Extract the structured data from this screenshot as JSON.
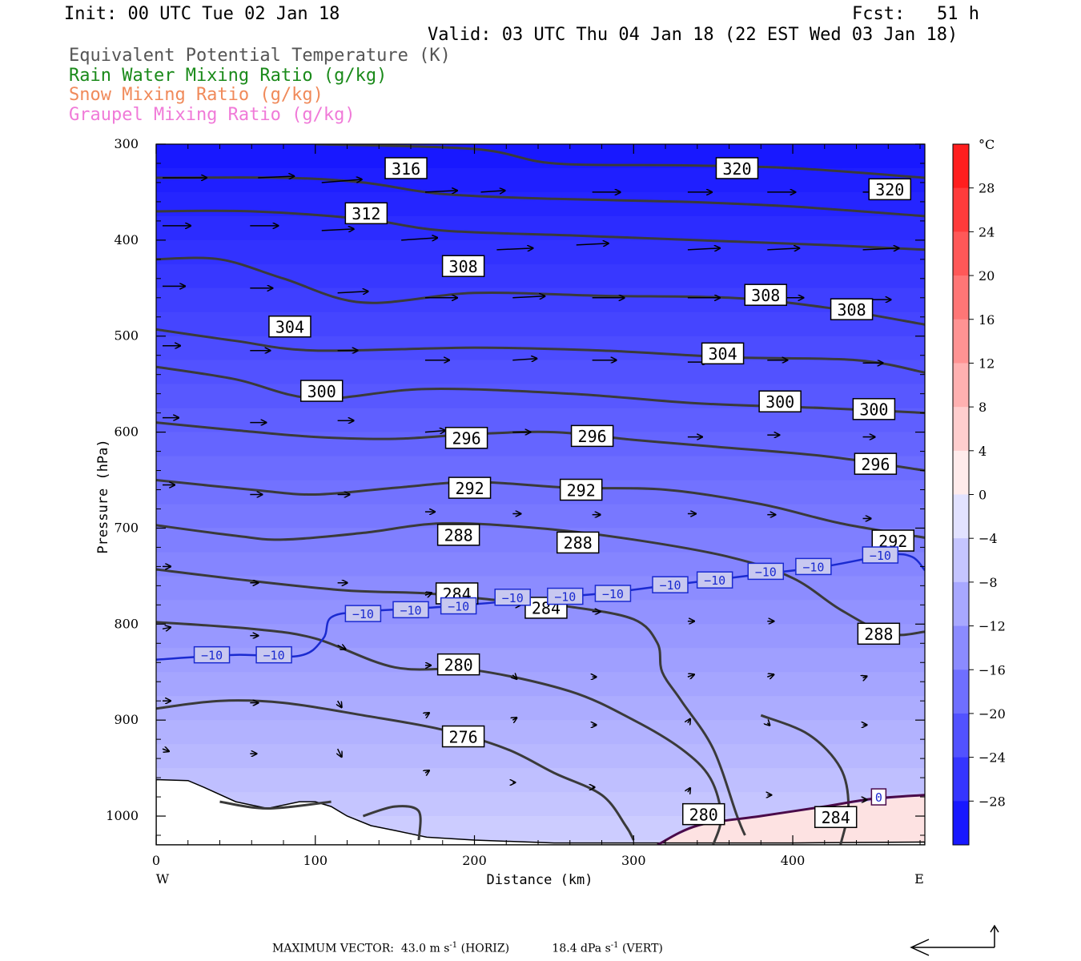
{
  "header": {
    "init": "Init: 00 UTC Tue 02 Jan 18",
    "fcst": "Fcst:   51 h",
    "valid": "Valid: 03 UTC Thu 04 Jan 18 (22 EST Wed 03 Jan 18)"
  },
  "legend": {
    "ept": "Equivalent Potential Temperature (K)",
    "rain": "Rain Water Mixing Ratio (g/kg)",
    "snow": "Snow Mixing Ratio (g/kg)",
    "graupel": "Graupel Mixing Ratio (g/kg)"
  },
  "colors": {
    "ept": "#555555",
    "rain": "#1a8a1a",
    "snow": "#f08a5a",
    "graupel": "#f07ad8",
    "isotherm": "#1a2ad0",
    "zero_isotherm": "#4a0a4a",
    "theta_e": "#3a3a3a"
  },
  "footer": {
    "prefix": "MAXIMUM VECTOR:  43.0 m s",
    "horiz_suffix": " (HORIZ)",
    "vert_prefix": "            18.4 dPa s",
    "vert_suffix": " (VERT)",
    "exp": "-1"
  },
  "chart_data": {
    "type": "cross-section",
    "xlabel": "Distance (km)",
    "ylabel": "Pressure (hPa)",
    "x_range": [
      0,
      483
    ],
    "y_range": [
      1030,
      300
    ],
    "y_scale": "linear",
    "x_ticks": [
      "0",
      "100",
      "200",
      "300",
      "400"
    ],
    "y_ticks": [
      "300",
      "400",
      "500",
      "600",
      "700",
      "800",
      "900",
      "1000"
    ],
    "west_label": "W",
    "east_label": "E",
    "colorbar": {
      "unit": "°C",
      "labels": [
        "28",
        "24",
        "20",
        "16",
        "12",
        "8",
        "4",
        "0",
        "−4",
        "−8",
        "−12",
        "−16",
        "−20",
        "−24",
        "−28"
      ],
      "min": -32,
      "max": 32,
      "step": 4
    },
    "theta_e_contours": [
      {
        "value": 320,
        "points": [
          [
            100,
            300
          ],
          [
            200,
            305
          ],
          [
            250,
            320
          ],
          [
            330,
            322
          ],
          [
            400,
            325
          ],
          [
            483,
            335
          ]
        ]
      },
      {
        "value": 316,
        "points": [
          [
            0,
            335
          ],
          [
            80,
            335
          ],
          [
            130,
            340
          ],
          [
            180,
            352
          ],
          [
            250,
            357
          ],
          [
            330,
            360
          ],
          [
            400,
            365
          ],
          [
            483,
            375
          ]
        ]
      },
      {
        "value": 312,
        "points": [
          [
            0,
            370
          ],
          [
            60,
            370
          ],
          [
            130,
            378
          ],
          [
            180,
            390
          ],
          [
            260,
            395
          ],
          [
            340,
            400
          ],
          [
            420,
            405
          ],
          [
            483,
            410
          ]
        ]
      },
      {
        "value": 308,
        "points": [
          [
            0,
            420
          ],
          [
            40,
            420
          ],
          [
            80,
            440
          ],
          [
            130,
            465
          ],
          [
            200,
            455
          ],
          [
            280,
            458
          ],
          [
            360,
            460
          ],
          [
            420,
            470
          ],
          [
            483,
            488
          ]
        ]
      },
      {
        "value": 304,
        "points": [
          [
            0,
            493
          ],
          [
            50,
            505
          ],
          [
            100,
            515
          ],
          [
            200,
            512
          ],
          [
            280,
            515
          ],
          [
            360,
            522
          ],
          [
            440,
            525
          ],
          [
            483,
            538
          ]
        ]
      },
      {
        "value": 300,
        "points": [
          [
            0,
            532
          ],
          [
            50,
            545
          ],
          [
            100,
            565
          ],
          [
            170,
            555
          ],
          [
            260,
            560
          ],
          [
            340,
            570
          ],
          [
            420,
            575
          ],
          [
            483,
            580
          ]
        ]
      },
      {
        "value": 296,
        "points": [
          [
            0,
            590
          ],
          [
            50,
            598
          ],
          [
            100,
            605
          ],
          [
            150,
            607
          ],
          [
            200,
            602
          ],
          [
            250,
            600
          ],
          [
            300,
            608
          ],
          [
            350,
            615
          ],
          [
            420,
            625
          ],
          [
            483,
            640
          ]
        ]
      },
      {
        "value": 292,
        "points": [
          [
            0,
            650
          ],
          [
            60,
            660
          ],
          [
            100,
            665
          ],
          [
            150,
            658
          ],
          [
            200,
            652
          ],
          [
            260,
            658
          ],
          [
            320,
            660
          ],
          [
            380,
            675
          ],
          [
            430,
            695
          ],
          [
            483,
            710
          ]
        ]
      },
      {
        "value": 288,
        "points": [
          [
            0,
            697
          ],
          [
            50,
            708
          ],
          [
            80,
            712
          ],
          [
            130,
            705
          ],
          [
            180,
            695
          ],
          [
            240,
            700
          ],
          [
            300,
            712
          ],
          [
            360,
            730
          ],
          [
            400,
            752
          ],
          [
            430,
            785
          ],
          [
            460,
            810
          ],
          [
            483,
            808
          ]
        ]
      },
      {
        "value": 284,
        "points": [
          [
            0,
            743
          ],
          [
            60,
            755
          ],
          [
            120,
            765
          ],
          [
            170,
            768
          ],
          [
            220,
            776
          ],
          [
            260,
            782
          ],
          [
            300,
            795
          ],
          [
            315,
            820
          ],
          [
            318,
            850
          ],
          [
            330,
            880
          ],
          [
            350,
            930
          ],
          [
            365,
            1000
          ],
          [
            370,
            1020
          ]
        ]
      },
      {
        "value": 280,
        "points": [
          [
            0,
            798
          ],
          [
            60,
            805
          ],
          [
            100,
            815
          ],
          [
            150,
            845
          ],
          [
            200,
            848
          ],
          [
            260,
            870
          ],
          [
            300,
            900
          ],
          [
            330,
            930
          ],
          [
            348,
            960
          ],
          [
            355,
            1000
          ],
          [
            350,
            1030
          ]
        ]
      },
      {
        "value": 280.1,
        "points": [
          [
            0,
            888
          ],
          [
            40,
            880
          ],
          [
            80,
            882
          ],
          [
            130,
            895
          ],
          [
            180,
            910
          ],
          [
            220,
            930
          ],
          [
            250,
            955
          ],
          [
            280,
            978
          ],
          [
            295,
            1010
          ],
          [
            300,
            1025
          ]
        ]
      },
      {
        "value": 284.1,
        "points": [
          [
            380,
            895
          ],
          [
            410,
            915
          ],
          [
            430,
            950
          ],
          [
            435,
            990
          ],
          [
            430,
            1030
          ]
        ]
      },
      {
        "value": 276,
        "points": [
          [
            130,
            1000
          ],
          [
            150,
            990
          ],
          [
            165,
            995
          ],
          [
            165,
            1025
          ]
        ]
      },
      {
        "value": 276.1,
        "points": [
          [
            110,
            985
          ],
          [
            70,
            992
          ],
          [
            40,
            985
          ]
        ]
      }
    ],
    "theta_e_labels": [
      {
        "value": "316",
        "x": 157,
        "p": 325
      },
      {
        "value": "320",
        "x": 365,
        "p": 325
      },
      {
        "value": "320",
        "x": 461,
        "p": 347
      },
      {
        "value": "312",
        "x": 132,
        "p": 372
      },
      {
        "value": "308",
        "x": 193,
        "p": 427
      },
      {
        "value": "308",
        "x": 383,
        "p": 457
      },
      {
        "value": "308",
        "x": 437,
        "p": 472
      },
      {
        "value": "304",
        "x": 84,
        "p": 490
      },
      {
        "value": "304",
        "x": 356,
        "p": 518
      },
      {
        "value": "300",
        "x": 104,
        "p": 557
      },
      {
        "value": "300",
        "x": 392,
        "p": 568
      },
      {
        "value": "300",
        "x": 451,
        "p": 576
      },
      {
        "value": "296",
        "x": 195,
        "p": 606
      },
      {
        "value": "296",
        "x": 274,
        "p": 604
      },
      {
        "value": "296",
        "x": 452,
        "p": 633
      },
      {
        "value": "292",
        "x": 197,
        "p": 658
      },
      {
        "value": "292",
        "x": 267,
        "p": 660
      },
      {
        "value": "292",
        "x": 463,
        "p": 713
      },
      {
        "value": "288",
        "x": 190,
        "p": 707
      },
      {
        "value": "288",
        "x": 265,
        "p": 715
      },
      {
        "value": "288",
        "x": 454,
        "p": 810
      },
      {
        "value": "284",
        "x": 189,
        "p": 768
      },
      {
        "value": "284",
        "x": 245,
        "p": 783
      },
      {
        "value": "284",
        "x": 427,
        "p": 1001
      },
      {
        "value": "280",
        "x": 190,
        "p": 842
      },
      {
        "value": "280",
        "x": 344,
        "p": 998
      },
      {
        "value": "276",
        "x": 193,
        "p": 917
      }
    ],
    "isotherm_minus10": {
      "value": "−10",
      "points": [
        [
          0,
          837
        ],
        [
          50,
          832
        ],
        [
          90,
          833
        ],
        [
          105,
          815
        ],
        [
          110,
          793
        ],
        [
          130,
          787
        ],
        [
          180,
          782
        ],
        [
          230,
          775
        ],
        [
          280,
          768
        ],
        [
          320,
          760
        ],
        [
          380,
          748
        ],
        [
          420,
          740
        ],
        [
          460,
          728
        ],
        [
          475,
          730
        ],
        [
          483,
          744
        ]
      ],
      "label_positions": [
        [
          35,
          832
        ],
        [
          74,
          832
        ],
        [
          130,
          789
        ],
        [
          160,
          785
        ],
        [
          190,
          781
        ],
        [
          224,
          772
        ],
        [
          257,
          771
        ],
        [
          287,
          768
        ],
        [
          323,
          759
        ],
        [
          351,
          754
        ],
        [
          383,
          745
        ],
        [
          413,
          740
        ],
        [
          455,
          728
        ]
      ]
    },
    "isotherm_zero": {
      "value": "0",
      "points": [
        [
          315,
          1030
        ],
        [
          340,
          1010
        ],
        [
          380,
          1000
        ],
        [
          420,
          990
        ],
        [
          450,
          982
        ],
        [
          483,
          978
        ]
      ],
      "label_positions": [
        [
          454,
          980
        ]
      ]
    },
    "wind_vectors": [
      [
        0,
        335,
        55,
        0
      ],
      [
        60,
        335,
        45,
        -2
      ],
      [
        100,
        340,
        50,
        -4
      ],
      [
        165,
        350,
        40,
        -2
      ],
      [
        200,
        350,
        30,
        -2
      ],
      [
        270,
        350,
        35,
        0
      ],
      [
        330,
        350,
        30,
        0
      ],
      [
        380,
        350,
        35,
        0
      ],
      [
        440,
        350,
        40,
        0
      ],
      [
        0,
        385,
        35,
        0
      ],
      [
        55,
        385,
        35,
        0
      ],
      [
        100,
        390,
        40,
        -2
      ],
      [
        150,
        400,
        45,
        -3
      ],
      [
        210,
        410,
        45,
        -2
      ],
      [
        260,
        405,
        40,
        -2
      ],
      [
        330,
        410,
        40,
        -2
      ],
      [
        380,
        410,
        40,
        -2
      ],
      [
        440,
        410,
        45,
        -2
      ],
      [
        0,
        448,
        28,
        0
      ],
      [
        55,
        450,
        28,
        0
      ],
      [
        110,
        455,
        38,
        -2
      ],
      [
        165,
        460,
        40,
        0
      ],
      [
        220,
        460,
        40,
        -2
      ],
      [
        270,
        460,
        40,
        0
      ],
      [
        330,
        460,
        40,
        0
      ],
      [
        380,
        460,
        45,
        0
      ],
      [
        440,
        462,
        35,
        0
      ],
      [
        0,
        510,
        22,
        0
      ],
      [
        55,
        515,
        25,
        0
      ],
      [
        110,
        515,
        25,
        0
      ],
      [
        165,
        525,
        30,
        0
      ],
      [
        220,
        525,
        30,
        -2
      ],
      [
        270,
        525,
        30,
        0
      ],
      [
        330,
        527,
        25,
        0
      ],
      [
        380,
        525,
        25,
        0
      ],
      [
        440,
        528,
        25,
        0
      ],
      [
        0,
        585,
        20,
        0
      ],
      [
        55,
        590,
        20,
        0
      ],
      [
        110,
        588,
        20,
        0
      ],
      [
        165,
        600,
        25,
        -2
      ],
      [
        220,
        600,
        22,
        0
      ],
      [
        270,
        602,
        22,
        0
      ],
      [
        330,
        605,
        18,
        0
      ],
      [
        380,
        603,
        15,
        0
      ],
      [
        440,
        605,
        15,
        0
      ],
      [
        0,
        655,
        15,
        0
      ],
      [
        55,
        665,
        15,
        0
      ],
      [
        110,
        665,
        15,
        0
      ],
      [
        165,
        683,
        12,
        0
      ],
      [
        220,
        685,
        10,
        0
      ],
      [
        270,
        686,
        10,
        0
      ],
      [
        330,
        685,
        10,
        0
      ],
      [
        380,
        686,
        10,
        0
      ],
      [
        440,
        690,
        10,
        0
      ],
      [
        0,
        740,
        10,
        0
      ],
      [
        55,
        757,
        10,
        0
      ],
      [
        110,
        757,
        12,
        0
      ],
      [
        165,
        770,
        8,
        -3
      ],
      [
        220,
        780,
        10,
        0
      ],
      [
        270,
        787,
        10,
        0
      ],
      [
        330,
        797,
        8,
        0
      ],
      [
        380,
        797,
        8,
        0
      ],
      [
        440,
        810,
        12,
        0
      ],
      [
        0,
        805,
        10,
        -2
      ],
      [
        55,
        812,
        10,
        0
      ],
      [
        110,
        822,
        10,
        5
      ],
      [
        165,
        843,
        7,
        0
      ],
      [
        220,
        853,
        5,
        5
      ],
      [
        270,
        855,
        5,
        0
      ],
      [
        330,
        855,
        8,
        -3
      ],
      [
        380,
        855,
        8,
        -3
      ],
      [
        440,
        856,
        5,
        -2
      ],
      [
        0,
        880,
        10,
        0
      ],
      [
        55,
        882,
        10,
        0
      ],
      [
        110,
        880,
        5,
        8
      ],
      [
        165,
        895,
        5,
        -3
      ],
      [
        220,
        900,
        5,
        -3
      ],
      [
        270,
        905,
        5,
        0
      ],
      [
        330,
        903,
        3,
        -5
      ],
      [
        380,
        903,
        3,
        3
      ],
      [
        440,
        905,
        5,
        0
      ],
      [
        0,
        930,
        8,
        3
      ],
      [
        55,
        935,
        8,
        0
      ],
      [
        110,
        930,
        5,
        10
      ],
      [
        165,
        955,
        5,
        -3
      ],
      [
        220,
        965,
        3,
        0
      ],
      [
        270,
        970,
        3,
        0
      ],
      [
        330,
        975,
        3,
        -5
      ],
      [
        380,
        978,
        5,
        0
      ],
      [
        440,
        983,
        5,
        0
      ]
    ]
  }
}
